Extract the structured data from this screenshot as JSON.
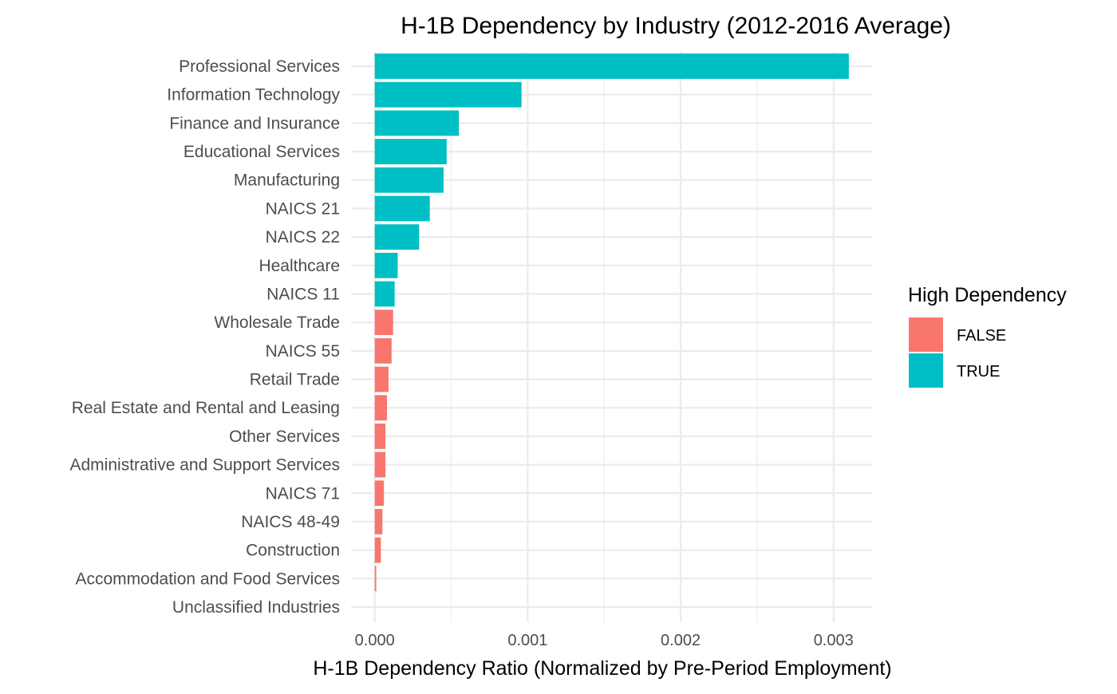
{
  "chart_data": {
    "type": "bar",
    "orientation": "horizontal",
    "title": "H-1B Dependency by Industry (2012-2016 Average)",
    "xlabel": "H-1B Dependency Ratio (Normalized by Pre-Period Employment)",
    "ylabel": "",
    "xlim": [
      0,
      0.00325
    ],
    "x_ticks": [
      0,
      0.001,
      0.002,
      0.003
    ],
    "x_tick_labels": [
      "0.000",
      "0.001",
      "0.002",
      "0.003"
    ],
    "grid": true,
    "legend": {
      "title": "High Dependency",
      "position": "right",
      "entries": [
        {
          "label": "FALSE",
          "color": "#F8766D"
        },
        {
          "label": "TRUE",
          "color": "#00BFC4"
        }
      ]
    },
    "categories": [
      "Professional Services",
      "Information Technology",
      "Finance and Insurance",
      "Educational Services",
      "Manufacturing",
      "NAICS 21",
      "NAICS 22",
      "Healthcare",
      "NAICS 11",
      "Wholesale Trade",
      "NAICS 55",
      "Retail Trade",
      "Real Estate and Rental and Leasing",
      "Other Services",
      "Administrative and Support Services",
      "NAICS 71",
      "NAICS 48-49",
      "Construction",
      "Accommodation and Food Services",
      "Unclassified Industries"
    ],
    "values": [
      0.0031,
      0.00096,
      0.00055,
      0.00047,
      0.00045,
      0.00036,
      0.00029,
      0.00015,
      0.00013,
      0.00012,
      0.00011,
      9e-05,
      8e-05,
      7e-05,
      7e-05,
      6e-05,
      5e-05,
      4e-05,
      1e-05,
      0.0
    ],
    "high_dependency": [
      "TRUE",
      "TRUE",
      "TRUE",
      "TRUE",
      "TRUE",
      "TRUE",
      "TRUE",
      "TRUE",
      "TRUE",
      "FALSE",
      "FALSE",
      "FALSE",
      "FALSE",
      "FALSE",
      "FALSE",
      "FALSE",
      "FALSE",
      "FALSE",
      "FALSE",
      "FALSE"
    ]
  }
}
